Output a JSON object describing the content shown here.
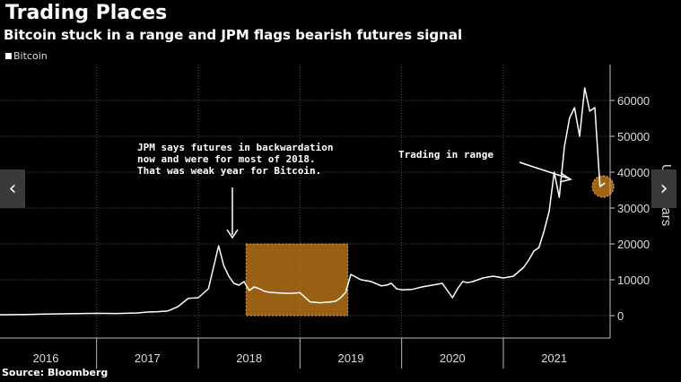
{
  "title": "Trading Places",
  "subtitle": "Bitcoin stuck in a range and JPM flags bearish futures signal",
  "source": "Source: Bloomberg",
  "nav": {
    "prev_icon": "‹",
    "next_icon": "›"
  },
  "colors": {
    "line": "#ffffff",
    "highlight": "#d4851c",
    "grid": "#555555",
    "background": "#000000"
  },
  "chart_data": {
    "type": "line",
    "title": "Trading Places",
    "legend": [
      "Bitcoin"
    ],
    "legend_position": "top-left",
    "ylabel": "US dollars",
    "ylim": [
      -5000,
      68000
    ],
    "y_ticks": [
      0,
      10000,
      20000,
      30000,
      40000,
      50000,
      60000
    ],
    "y_tick_labels": [
      "0",
      "10000",
      "20000",
      "30000",
      "40000",
      "50000",
      "60000"
    ],
    "x_range": [
      2015.55,
      2021.55
    ],
    "x_tick_labels": [
      {
        "label": "2016",
        "x": 2016.0
      },
      {
        "label": "2017",
        "x": 2017.0
      },
      {
        "label": "2018",
        "x": 2018.0
      },
      {
        "label": "2019",
        "x": 2019.0
      },
      {
        "label": "2020",
        "x": 2020.0
      },
      {
        "label": "2021",
        "x": 2021.0
      }
    ],
    "x_boundaries": [
      2016.5,
      2017.5,
      2018.5,
      2019.5,
      2020.5
    ],
    "series": [
      {
        "name": "Bitcoin",
        "x": [
          2015.55,
          2015.8,
          2016.0,
          2016.3,
          2016.5,
          2016.7,
          2016.9,
          2017.0,
          2017.1,
          2017.2,
          2017.3,
          2017.4,
          2017.5,
          2017.6,
          2017.7,
          2017.75,
          2017.8,
          2017.85,
          2017.9,
          2017.95,
          2018.0,
          2018.05,
          2018.1,
          2018.15,
          2018.2,
          2018.3,
          2018.4,
          2018.5,
          2018.6,
          2018.7,
          2018.8,
          2018.85,
          2018.9,
          2018.95,
          2019.0,
          2019.1,
          2019.2,
          2019.3,
          2019.35,
          2019.4,
          2019.45,
          2019.5,
          2019.6,
          2019.7,
          2019.8,
          2019.9,
          2020.0,
          2020.05,
          2020.1,
          2020.15,
          2020.2,
          2020.3,
          2020.4,
          2020.5,
          2020.6,
          2020.7,
          2020.75,
          2020.8,
          2020.85,
          2020.9,
          2020.95,
          2021.0,
          2021.05,
          2021.1,
          2021.15,
          2021.2,
          2021.25,
          2021.3,
          2021.35,
          2021.4,
          2021.45,
          2021.5
        ],
        "y": [
          250,
          330,
          430,
          550,
          650,
          610,
          750,
          1000,
          1100,
          1300,
          2500,
          4800,
          5000,
          7500,
          19500,
          14000,
          11000,
          9000,
          8500,
          9500,
          7000,
          8000,
          7500,
          6800,
          6500,
          6300,
          6200,
          6400,
          3800,
          3600,
          3800,
          4000,
          5000,
          6500,
          11500,
          10000,
          9500,
          8300,
          8500,
          9000,
          7500,
          7200,
          7300,
          8000,
          8500,
          9000,
          5000,
          7500,
          9500,
          9200,
          9500,
          10500,
          11000,
          10500,
          11000,
          13500,
          15500,
          18000,
          19000,
          23500,
          29000,
          40000,
          33000,
          47000,
          55000,
          58000,
          50000,
          63500,
          57000,
          58000,
          36000,
          37000
        ]
      }
    ],
    "highlights": [
      {
        "label": "JPM says futures in backwardation now and were for most of 2018. That was weak year for Bitcoin.",
        "x_range": [
          2017.97,
          2018.97
        ],
        "y_range": [
          0,
          20000
        ]
      },
      {
        "label": "Trading in range",
        "x": 2021.48,
        "y": 36000
      }
    ],
    "annotations": [
      "JPM says futures in backwardation",
      "now and were for most of 2018.",
      "That was weak year for Bitcoin.",
      "Trading in range"
    ]
  }
}
